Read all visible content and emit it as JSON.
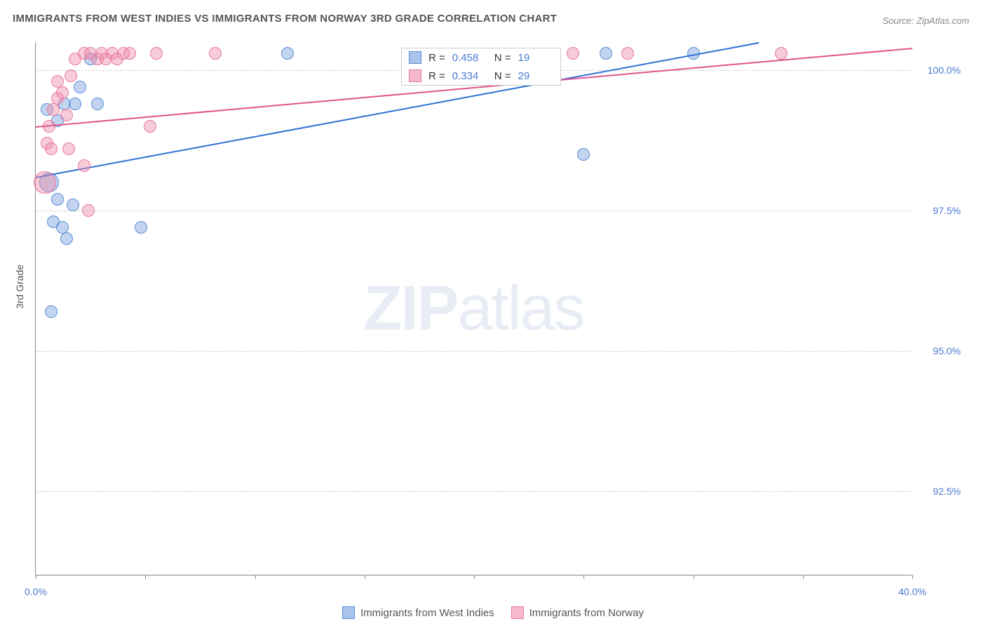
{
  "title": "IMMIGRANTS FROM WEST INDIES VS IMMIGRANTS FROM NORWAY 3RD GRADE CORRELATION CHART",
  "source": "Source: ZipAtlas.com",
  "y_axis_label": "3rd Grade",
  "watermark": {
    "part1": "ZIP",
    "part2": "atlas"
  },
  "chart": {
    "type": "scatter",
    "background_color": "#ffffff",
    "grid_color": "#d0d0d0",
    "axis_color": "#888888",
    "xlim": [
      0,
      40
    ],
    "ylim": [
      91.0,
      100.5
    ],
    "y_ticks": [
      {
        "value": 92.5,
        "label": "92.5%"
      },
      {
        "value": 95.0,
        "label": "95.0%"
      },
      {
        "value": 97.5,
        "label": "97.5%"
      },
      {
        "value": 100.0,
        "label": "100.0%"
      }
    ],
    "x_ticks": [
      0,
      5,
      10,
      15,
      20,
      25,
      30,
      35,
      40
    ],
    "x_labels": [
      {
        "value": 0,
        "label": "0.0%"
      },
      {
        "value": 40,
        "label": "40.0%"
      }
    ],
    "y_label_color": "#4a7bd0",
    "x_label_color": "#4a7bd0"
  },
  "series": [
    {
      "name": "Immigrants from West Indies",
      "fill": "rgba(120, 160, 220, 0.45)",
      "stroke": "#5a8cd6",
      "line_color": "#2e6fd6",
      "swatch_fill": "#a9c4ea",
      "swatch_border": "#5a8cd6",
      "R": "0.458",
      "N": "19",
      "marker_r": 9,
      "trend": {
        "x1": 0,
        "y1": 98.1,
        "x2": 33,
        "y2": 100.5
      },
      "points": [
        {
          "x": 0.6,
          "y": 98.0,
          "r": 14
        },
        {
          "x": 0.5,
          "y": 99.3
        },
        {
          "x": 1.0,
          "y": 99.1
        },
        {
          "x": 1.3,
          "y": 99.4
        },
        {
          "x": 1.0,
          "y": 97.7
        },
        {
          "x": 0.8,
          "y": 97.3
        },
        {
          "x": 1.2,
          "y": 97.2
        },
        {
          "x": 1.4,
          "y": 97.0
        },
        {
          "x": 0.7,
          "y": 95.7
        },
        {
          "x": 1.8,
          "y": 99.4
        },
        {
          "x": 1.7,
          "y": 97.6
        },
        {
          "x": 2.0,
          "y": 99.7
        },
        {
          "x": 2.5,
          "y": 100.2
        },
        {
          "x": 2.8,
          "y": 99.4
        },
        {
          "x": 4.8,
          "y": 97.2
        },
        {
          "x": 11.5,
          "y": 100.3
        },
        {
          "x": 25.0,
          "y": 98.5
        },
        {
          "x": 26.0,
          "y": 100.3
        },
        {
          "x": 30.0,
          "y": 100.3
        }
      ]
    },
    {
      "name": "Immigrants from Norway",
      "fill": "rgba(240, 140, 170, 0.45)",
      "stroke": "#e67aa0",
      "line_color": "#e05590",
      "swatch_fill": "#f5b8cd",
      "swatch_border": "#e67aa0",
      "R": "0.334",
      "N": "29",
      "marker_r": 9,
      "trend": {
        "x1": 0,
        "y1": 99.0,
        "x2": 40,
        "y2": 100.4
      },
      "points": [
        {
          "x": 0.4,
          "y": 98.0,
          "r": 16
        },
        {
          "x": 0.5,
          "y": 98.7
        },
        {
          "x": 0.7,
          "y": 98.6
        },
        {
          "x": 0.6,
          "y": 99.0
        },
        {
          "x": 0.8,
          "y": 99.3
        },
        {
          "x": 1.0,
          "y": 99.5
        },
        {
          "x": 1.0,
          "y": 99.8
        },
        {
          "x": 1.2,
          "y": 99.6
        },
        {
          "x": 1.4,
          "y": 99.2
        },
        {
          "x": 1.5,
          "y": 98.6
        },
        {
          "x": 1.6,
          "y": 99.9
        },
        {
          "x": 1.8,
          "y": 100.2
        },
        {
          "x": 2.2,
          "y": 98.3
        },
        {
          "x": 2.2,
          "y": 100.3
        },
        {
          "x": 2.4,
          "y": 97.5
        },
        {
          "x": 2.5,
          "y": 100.3
        },
        {
          "x": 2.8,
          "y": 100.2
        },
        {
          "x": 3.0,
          "y": 100.3
        },
        {
          "x": 3.2,
          "y": 100.2
        },
        {
          "x": 3.5,
          "y": 100.3
        },
        {
          "x": 3.7,
          "y": 100.2
        },
        {
          "x": 4.0,
          "y": 100.3
        },
        {
          "x": 4.3,
          "y": 100.3
        },
        {
          "x": 5.2,
          "y": 99.0
        },
        {
          "x": 5.5,
          "y": 100.3
        },
        {
          "x": 8.2,
          "y": 100.3
        },
        {
          "x": 24.5,
          "y": 100.3
        },
        {
          "x": 27.0,
          "y": 100.3
        },
        {
          "x": 34.0,
          "y": 100.3
        }
      ]
    }
  ]
}
